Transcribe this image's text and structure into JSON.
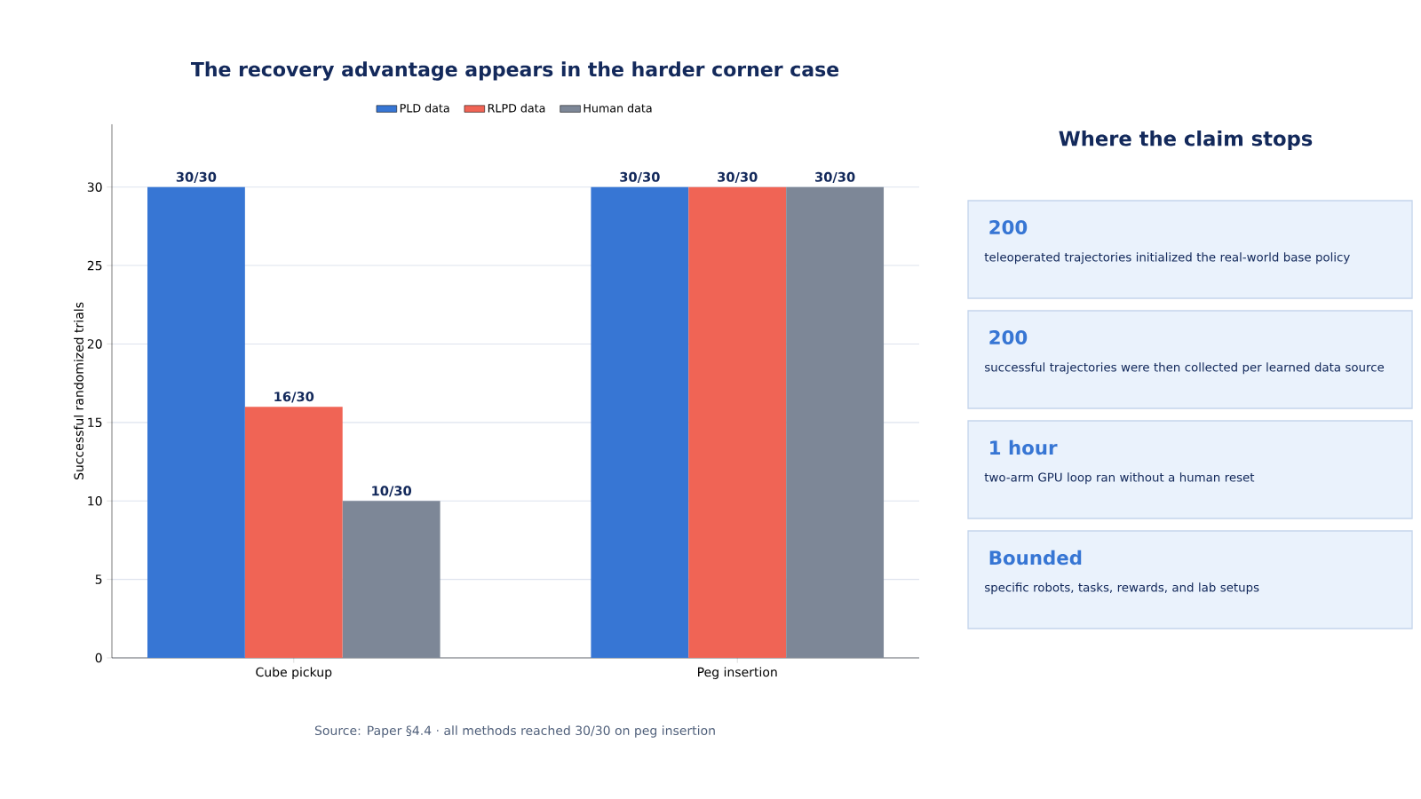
{
  "chart_data": [
    {
      "type": "bar",
      "title": "The recovery advantage appears in the harder corner case",
      "ylabel": "Successful randomized trials",
      "categories": [
        "Cube pickup",
        "Peg insertion"
      ],
      "series": [
        {
          "name": "PLD data",
          "color": "#3776d4",
          "values": [
            30,
            30
          ],
          "value_labels": [
            "30/30",
            "30/30"
          ]
        },
        {
          "name": "RLPD data",
          "color": "#f06455",
          "values": [
            16,
            30
          ],
          "value_labels": [
            "16/30",
            "30/30"
          ]
        },
        {
          "name": "Human data",
          "color": "#7d8797",
          "values": [
            10,
            30
          ],
          "value_labels": [
            "10/30",
            "30/30"
          ]
        }
      ],
      "ylim": [
        0,
        34
      ],
      "yticks": [
        0,
        5,
        10,
        15,
        20,
        25,
        30
      ],
      "grid": "y",
      "legend": "top",
      "annotations": [
        "Source: Paper §4.4 · all methods reached 30/30 on peg insertion"
      ]
    },
    {
      "type": "other",
      "title": "Where the claim stops",
      "annotations": [
        "200",
        "teleoperated trajectories initialized the real-world base policy",
        "200",
        "successful trajectories were then collected per learned data source",
        "1 hour",
        "two-arm GPU loop ran without a human reset",
        "Bounded",
        "specific robots, tasks, rewards, and lab setups"
      ]
    }
  ]
}
